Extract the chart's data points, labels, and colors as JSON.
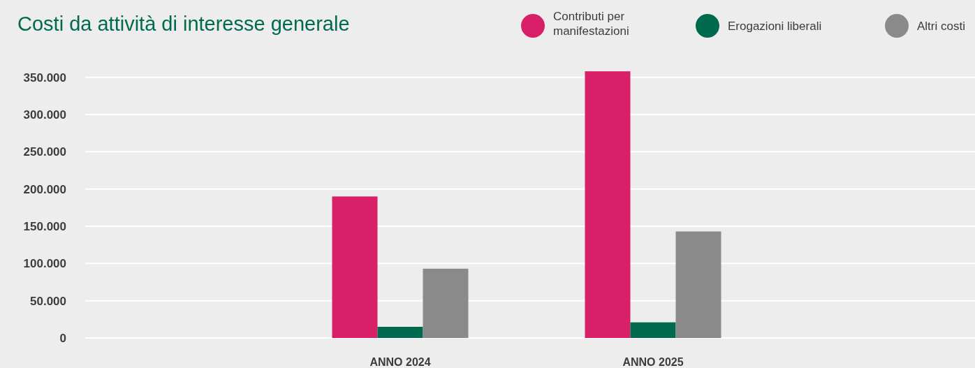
{
  "chart_data": {
    "type": "bar",
    "title": "Costi da attività di interesse generale",
    "categories": [
      "ANNO 2024",
      "ANNO 2025"
    ],
    "series": [
      {
        "name": "Contributi per manifestazioni",
        "color": "#d81f67",
        "values": [
          190000,
          358000
        ]
      },
      {
        "name": "Erogazioni liberali",
        "color": "#006a4e",
        "values": [
          15000,
          21000
        ]
      },
      {
        "name": "Altri costi",
        "color": "#8a8a8a",
        "values": [
          93000,
          143000
        ]
      }
    ],
    "ylim": [
      0,
      360000
    ],
    "yticks": [
      0,
      {
        "value": 50000,
        "label": "50.000"
      },
      {
        "value": 100000,
        "label": "100.000"
      },
      {
        "value": 150000,
        "label": "150.000"
      },
      {
        "value": 200000,
        "label": "200.000"
      },
      {
        "value": 250000,
        "label": "250.000"
      },
      {
        "value": 300000,
        "label": "300.000"
      },
      {
        "value": 350000,
        "label": "350.000"
      }
    ],
    "grid": "y",
    "legend": "top right"
  }
}
